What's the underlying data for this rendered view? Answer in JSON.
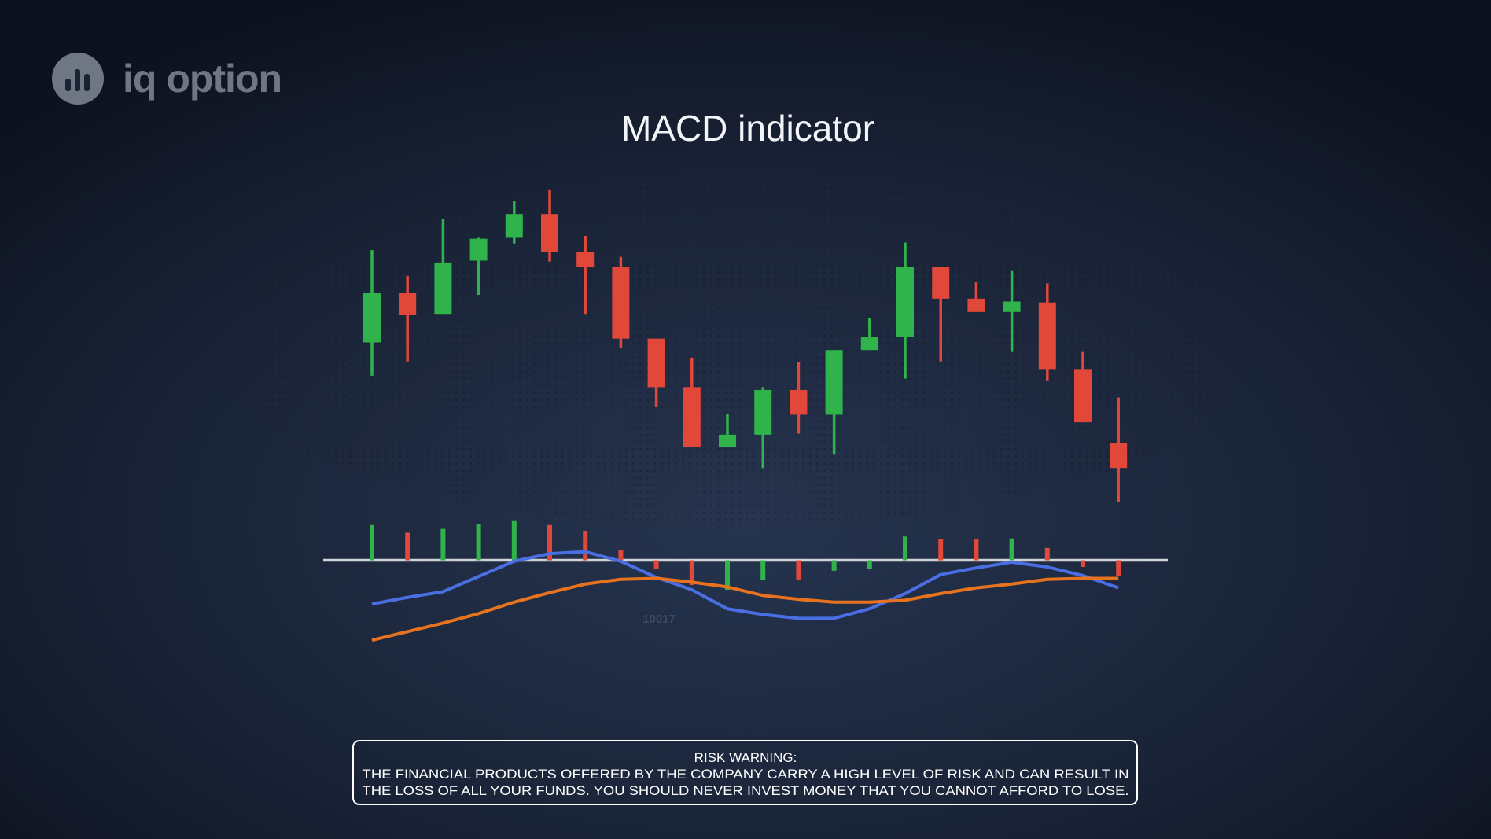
{
  "logo": "iq option",
  "risk_warning": {
    "title": "RISK WARNING:",
    "lines": [
      "THE FINANCIAL PRODUCTS OFFERED BY THE COMPANY CARRY A HIGH LEVEL OF RISK AND CAN RESULT IN",
      "THE LOSS OF ALL YOUR FUNDS. YOU SHOULD NEVER INVEST MONEY THAT YOU CANNOT AFFORD TO LOSE."
    ]
  },
  "chart_data": {
    "type": "candlestick",
    "title": "MACD indicator",
    "ylim": [
      0,
      882
    ],
    "y2lim": [
      -293,
      589
    ],
    "up_color": "#2fb34a",
    "down_color": "#e2483a",
    "open": [
      522,
      574,
      552,
      608,
      632,
      657,
      617,
      601,
      526,
      475,
      412,
      425,
      472,
      446,
      514,
      528,
      601,
      568,
      554,
      564,
      494,
      416
    ],
    "high": [
      619,
      592,
      652,
      632,
      671,
      683,
      634,
      612,
      526,
      506,
      447,
      475,
      501,
      514,
      548,
      627,
      601,
      586,
      597,
      584,
      512,
      464
    ],
    "low": [
      487,
      502,
      552,
      572,
      626,
      607,
      552,
      516,
      454,
      412,
      412,
      390,
      426,
      404,
      514,
      484,
      502,
      554,
      512,
      482,
      438,
      354
    ],
    "close": [
      574,
      551,
      606,
      631,
      657,
      617,
      601,
      526,
      475,
      412,
      425,
      472,
      446,
      514,
      528,
      601,
      568,
      554,
      565,
      494,
      438,
      390
    ],
    "histogram": {
      "axis": "y2",
      "values": [
        37,
        29,
        33,
        38,
        42,
        37,
        31,
        11,
        -9,
        -26,
        -31,
        -21,
        -21,
        -11,
        -9,
        25,
        22,
        22,
        23,
        13,
        -7,
        -16
      ]
    },
    "series": [
      {
        "color": "#4a6fe3",
        "axis": "y2",
        "values": [
          -46,
          -39,
          -33,
          -17,
          -1,
          7,
          9,
          -1,
          -18,
          -31,
          -51,
          -57,
          -61,
          -61,
          -51,
          -35,
          -15,
          -8,
          -2,
          -7,
          -16,
          -29
        ]
      },
      {
        "color": "#e8731f",
        "axis": "y2",
        "values": [
          -84,
          -75,
          -66,
          -56,
          -44,
          -34,
          -25,
          -20,
          -19,
          -23,
          -28,
          -37,
          -41,
          -44,
          -44,
          -42,
          -35,
          -29,
          -25,
          -20,
          -19,
          -19
        ]
      }
    ],
    "annotations": [
      "10017"
    ]
  }
}
